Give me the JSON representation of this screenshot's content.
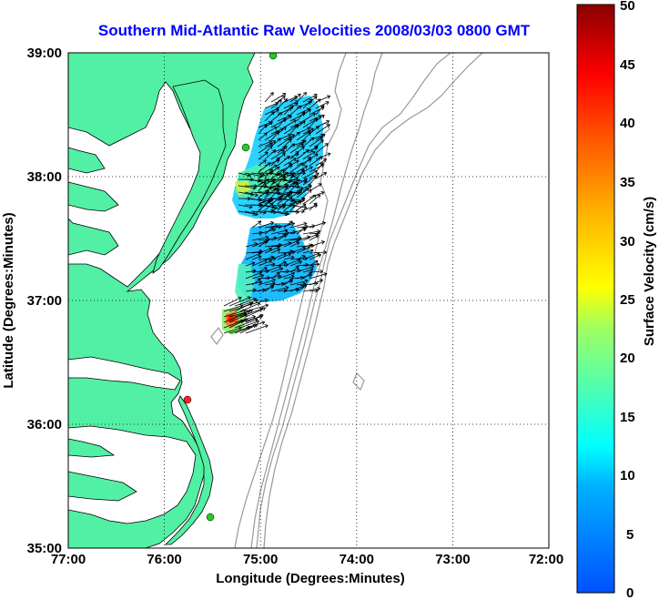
{
  "title": "Southern Mid-Atlantic Raw Velocities 2008/03/03 0800 GMT",
  "x_axis": {
    "label": "Longitude (Degrees:Minutes)",
    "ticks": [
      "77:00",
      "76:00",
      "75:00",
      "74:00",
      "73:00",
      "72:00"
    ]
  },
  "y_axis": {
    "label": "Latitude (Degrees:Minutes)",
    "ticks": [
      "39:00",
      "38:00",
      "37:00",
      "36:00",
      "35:00"
    ]
  },
  "colorbar": {
    "label": "Surface Velocity (cm/s)",
    "ticks": [
      "50",
      "45",
      "40",
      "35",
      "30",
      "25",
      "20",
      "15",
      "10",
      "5",
      "0"
    ],
    "min": 0,
    "max": 50
  },
  "colors": {
    "land": "#52f0a4",
    "water": "#ffffff",
    "bathymetry": "#999999",
    "title": "#0000ff",
    "station_green": "#22cc22",
    "station_red": "#ff2222"
  },
  "map_extent": {
    "lon": [
      -77,
      -72
    ],
    "lat": [
      35,
      39
    ]
  },
  "grid": "dotted"
}
